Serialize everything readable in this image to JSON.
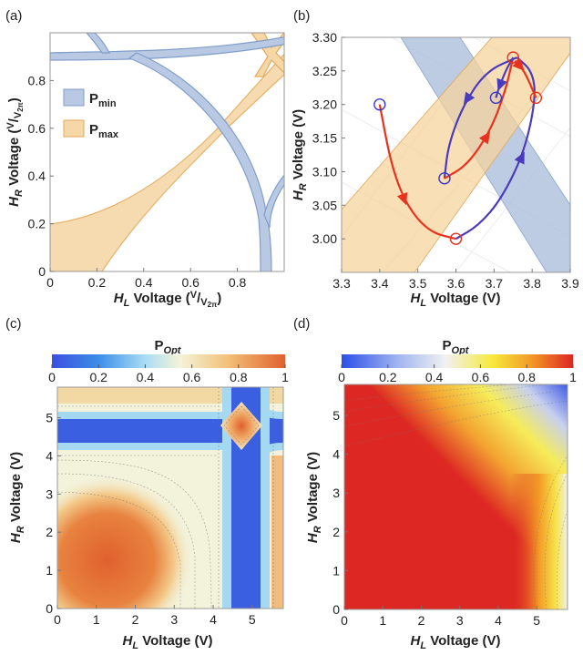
{
  "chart_data": [
    {
      "panel": "(a)",
      "type": "area",
      "xlabel": "H_L Voltage (V/V_2π)",
      "ylabel": "H_R Voltage (V/V_2π)",
      "xlim": [
        0,
        1
      ],
      "ylim": [
        0,
        1
      ],
      "xticks": [
        "0",
        "0.2",
        "0.4",
        "0.6",
        "0.8"
      ],
      "yticks": [
        "0",
        "0.2",
        "0.4",
        "0.6",
        "0.8"
      ],
      "legend": [
        "P_min",
        "P_max"
      ],
      "colors": {
        "p_min": "#b9c9e3",
        "p_max": "#f6d8a8",
        "p_min_edge": "#7f9dc9",
        "p_max_edge": "#e4a95a"
      }
    },
    {
      "panel": "(b)",
      "type": "line",
      "xlabel": "H_L Voltage (V)",
      "ylabel": "H_R Voltage (V)",
      "xlim": [
        3.3,
        3.9
      ],
      "ylim": [
        2.95,
        3.3
      ],
      "xticks": [
        "3.3",
        "3.4",
        "3.5",
        "3.6",
        "3.7",
        "3.8",
        "3.9"
      ],
      "yticks": [
        "3.00",
        "3.05",
        "3.10",
        "3.15",
        "3.20",
        "3.25",
        "3.30"
      ],
      "markers": [
        {
          "x": 3.4,
          "y": 3.2
        },
        {
          "x": 3.6,
          "y": 3.0
        },
        {
          "x": 3.57,
          "y": 3.09
        },
        {
          "x": 3.705,
          "y": 3.21
        },
        {
          "x": 3.75,
          "y": 3.27
        },
        {
          "x": 3.81,
          "y": 3.21
        }
      ],
      "series": [
        {
          "color": "#e8321e",
          "points": [
            [
              3.4,
              3.2
            ],
            [
              3.43,
              3.11
            ],
            [
              3.47,
              3.05
            ],
            [
              3.53,
              3.01
            ],
            [
              3.6,
              3.0
            ]
          ]
        },
        {
          "color": "#4a3bbd",
          "points": [
            [
              3.6,
              3.0
            ],
            [
              3.66,
              3.02
            ],
            [
              3.72,
              3.06
            ],
            [
              3.78,
              3.13
            ],
            [
              3.81,
              3.21
            ],
            [
              3.8,
              3.25
            ],
            [
              3.76,
              3.27
            ]
          ]
        },
        {
          "color": "#4a3bbd",
          "points": [
            [
              3.76,
              3.27
            ],
            [
              3.68,
              3.25
            ],
            [
              3.62,
              3.2
            ],
            [
              3.58,
              3.14
            ],
            [
              3.57,
              3.09
            ]
          ]
        },
        {
          "color": "#e8321e",
          "points": [
            [
              3.57,
              3.09
            ],
            [
              3.63,
              3.11
            ],
            [
              3.69,
              3.16
            ],
            [
              3.73,
              3.22
            ],
            [
              3.75,
              3.27
            ]
          ]
        },
        {
          "color": "#4a3bbd",
          "points": [
            [
              3.75,
              3.27
            ],
            [
              3.73,
              3.25
            ],
            [
              3.71,
              3.22
            ],
            [
              3.705,
              3.21
            ]
          ]
        },
        {
          "color": "#e8321e",
          "points": [
            [
              3.755,
              3.265
            ],
            [
              3.78,
              3.25
            ],
            [
              3.81,
              3.21
            ]
          ]
        }
      ]
    },
    {
      "panel": "(c)",
      "type": "heatmap",
      "colorbar_title": "P_Opt",
      "colorbar_ticks": [
        "0",
        "0.2",
        "0.4",
        "0.6",
        "0.8",
        "1"
      ],
      "xlabel": "H_L Voltage (V)",
      "ylabel": "H_R Voltage (V)",
      "xlim": [
        0,
        5.8
      ],
      "ylim": [
        0,
        5.8
      ],
      "xticks": [
        "0",
        "1",
        "2",
        "3",
        "4",
        "5"
      ],
      "yticks": [
        "0",
        "1",
        "2",
        "3",
        "4",
        "5"
      ],
      "colors": [
        "#3a5fe0",
        "#8ac8ef",
        "#f3f2da",
        "#f2c27a",
        "#e0612e"
      ]
    },
    {
      "panel": "(d)",
      "type": "heatmap",
      "colorbar_title": "P_Opt",
      "colorbar_ticks": [
        "0",
        "0.2",
        "0.4",
        "0.6",
        "0.8",
        "1"
      ],
      "xlabel": "H_L Voltage (V)",
      "ylabel": "H_R Voltage (V)",
      "xlim": [
        0,
        5.8
      ],
      "ylim": [
        0,
        5.8
      ],
      "xticks": [
        "0",
        "1",
        "2",
        "3",
        "4",
        "5"
      ],
      "yticks": [
        "0",
        "1",
        "2",
        "3",
        "4",
        "5"
      ],
      "colors": [
        "#2d4fe6",
        "#eeeeee",
        "#f6ea3c",
        "#f29a26",
        "#dc2722"
      ]
    }
  ],
  "labels": {
    "a": "(a)",
    "b": "(b)",
    "c": "(c)",
    "d": "(d)",
    "pmin": "P",
    "pmin_sub": "min",
    "pmax": "P",
    "pmax_sub": "max",
    "popt": "P",
    "popt_sub": "Opt",
    "hl": "H",
    "hl_sub": "L",
    "hr": "H",
    "hr_sub": "R",
    "voltage": " Voltage ",
    "unit_v": "(V)",
    "v_over_v2pi_open": "(",
    "v_num": "V",
    "v_slash": "/",
    "v_den": "V",
    "v_den_sub": "2π",
    "v_close": ")"
  }
}
